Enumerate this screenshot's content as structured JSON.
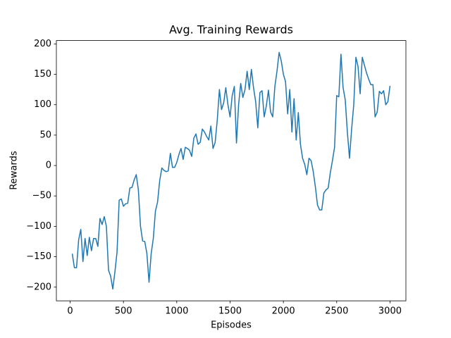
{
  "chart_data": {
    "type": "line",
    "title": "Avg. Training Rewards",
    "x_label": "Episodes",
    "y_label": "Rewards",
    "x": [
      20,
      40,
      60,
      80,
      100,
      120,
      140,
      160,
      180,
      200,
      220,
      240,
      260,
      280,
      300,
      320,
      340,
      360,
      380,
      400,
      420,
      440,
      460,
      480,
      500,
      520,
      540,
      560,
      580,
      600,
      620,
      640,
      660,
      680,
      700,
      720,
      740,
      760,
      780,
      800,
      820,
      840,
      860,
      880,
      900,
      920,
      940,
      960,
      980,
      1000,
      1020,
      1040,
      1060,
      1080,
      1100,
      1120,
      1140,
      1160,
      1180,
      1200,
      1220,
      1240,
      1260,
      1280,
      1300,
      1320,
      1340,
      1360,
      1380,
      1400,
      1420,
      1440,
      1460,
      1480,
      1500,
      1520,
      1540,
      1560,
      1580,
      1600,
      1620,
      1640,
      1660,
      1680,
      1700,
      1720,
      1740,
      1760,
      1780,
      1800,
      1820,
      1840,
      1860,
      1880,
      1900,
      1920,
      1940,
      1960,
      1980,
      2000,
      2020,
      2040,
      2060,
      2080,
      2100,
      2120,
      2140,
      2160,
      2180,
      2200,
      2220,
      2240,
      2260,
      2280,
      2300,
      2320,
      2340,
      2360,
      2380,
      2400,
      2420,
      2440,
      2460,
      2480,
      2500,
      2520,
      2540,
      2560,
      2580,
      2600,
      2620,
      2640,
      2660,
      2680,
      2700,
      2720,
      2740,
      2760,
      2780,
      2800,
      2820,
      2840,
      2860,
      2880,
      2900,
      2920,
      2940,
      2960,
      2980,
      3000
    ],
    "series": [
      {
        "name": "Rewards",
        "color": "#1f77b4",
        "values": [
          -145,
          -168,
          -168,
          -122,
          -105,
          -158,
          -120,
          -148,
          -118,
          -140,
          -120,
          -120,
          -133,
          -87,
          -97,
          -84,
          -100,
          -172,
          -182,
          -203,
          -175,
          -142,
          -57,
          -55,
          -67,
          -63,
          -62,
          -37,
          -36,
          -24,
          -15,
          -40,
          -100,
          -124,
          -125,
          -145,
          -192,
          -145,
          -120,
          -75,
          -60,
          -25,
          -4,
          -8,
          -10,
          -9,
          20,
          -3,
          -3,
          5,
          18,
          28,
          10,
          30,
          28,
          25,
          15,
          45,
          52,
          35,
          38,
          60,
          55,
          48,
          42,
          65,
          28,
          38,
          75,
          125,
          92,
          103,
          128,
          100,
          80,
          115,
          130,
          37,
          100,
          135,
          112,
          125,
          155,
          125,
          158,
          128,
          105,
          62,
          120,
          123,
          80,
          98,
          124,
          88,
          80,
          130,
          155,
          186,
          172,
          150,
          138,
          85,
          125,
          55,
          110,
          42,
          87,
          35,
          12,
          2,
          -15,
          12,
          8,
          -10,
          -35,
          -65,
          -73,
          -73,
          -45,
          -40,
          -37,
          -12,
          8,
          30,
          115,
          113,
          183,
          128,
          108,
          55,
          12,
          60,
          100,
          178,
          163,
          118,
          178,
          165,
          152,
          142,
          133,
          133,
          80,
          88,
          122,
          118,
          123,
          100,
          105,
          131
        ]
      }
    ],
    "xlim": [
      -129,
      3149
    ],
    "ylim": [
      -222.5,
      205.5
    ],
    "xticks": [
      0,
      500,
      1000,
      1500,
      2000,
      2500,
      3000
    ],
    "yticks": [
      {
        "value": -200,
        "label": "−200"
      },
      {
        "value": -150,
        "label": "−150"
      },
      {
        "value": -100,
        "label": "−100"
      },
      {
        "value": -50,
        "label": "−50"
      },
      0,
      50,
      100,
      150,
      200
    ]
  }
}
